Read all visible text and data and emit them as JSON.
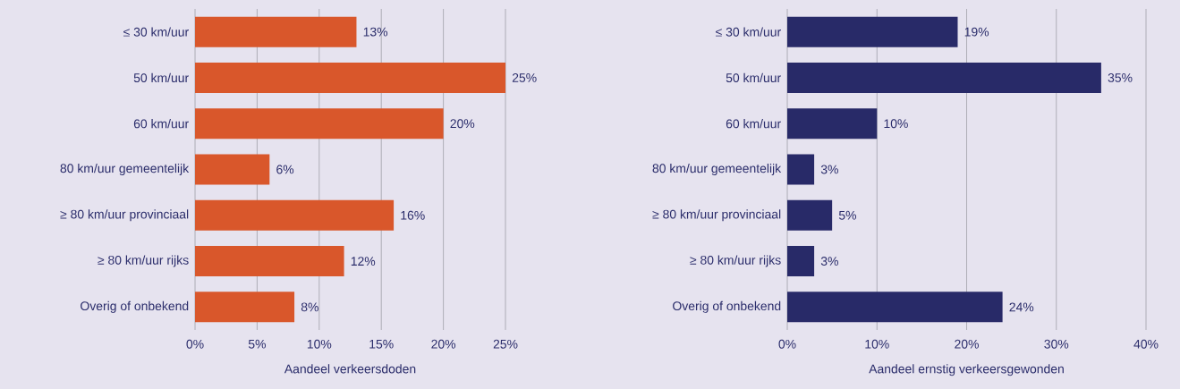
{
  "chart_data": [
    {
      "type": "bar",
      "orientation": "horizontal",
      "xlabel": "Aandeel verkeersdoden",
      "categories": [
        "≤ 30 km/uur",
        "50 km/uur",
        "60 km/uur",
        "80 km/uur gemeentelijk",
        "≥ 80 km/uur provinciaal",
        "≥ 80 km/uur rijks",
        "Overig of onbekend"
      ],
      "values": [
        13,
        25,
        20,
        6,
        16,
        12,
        8
      ],
      "value_labels": [
        "13%",
        "25%",
        "20%",
        "6%",
        "16%",
        "12%",
        "8%"
      ],
      "color": "#d9572b",
      "xlim": [
        0,
        25
      ],
      "xticks": [
        {
          "value": 0,
          "label": "0%"
        },
        {
          "value": 5,
          "label": "5%"
        },
        {
          "value": 10,
          "label": "10%"
        },
        {
          "value": 15,
          "label": "15%"
        },
        {
          "value": 20,
          "label": "20%"
        },
        {
          "value": 25,
          "label": "25%"
        }
      ],
      "grid": "x"
    },
    {
      "type": "bar",
      "orientation": "horizontal",
      "xlabel": "Aandeel ernstig verkeersgewonden",
      "categories": [
        "≤ 30 km/uur",
        "50 km/uur",
        "60 km/uur",
        "80 km/uur gemeentelijk",
        "≥ 80 km/uur provinciaal",
        "≥ 80 km/uur rijks",
        "Overig of onbekend"
      ],
      "values": [
        19,
        35,
        10,
        3,
        5,
        3,
        24
      ],
      "value_labels": [
        "19%",
        "35%",
        "10%",
        "3%",
        "5%",
        "3%",
        "24%"
      ],
      "color": "#282a68",
      "xlim": [
        0,
        40
      ],
      "xticks": [
        {
          "value": 0,
          "label": "0%"
        },
        {
          "value": 10,
          "label": "10%"
        },
        {
          "value": 20,
          "label": "20%"
        },
        {
          "value": 30,
          "label": "30%"
        },
        {
          "value": 40,
          "label": "40%"
        }
      ],
      "grid": "x"
    }
  ]
}
